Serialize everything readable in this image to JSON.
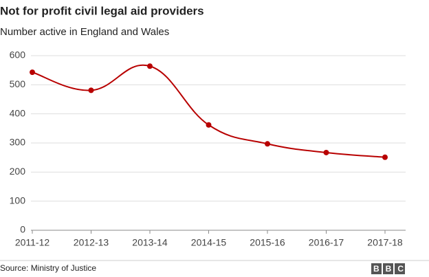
{
  "chart_data": {
    "type": "line",
    "title": "Not for profit civil legal aid providers",
    "subtitle": "Number active in England and Wales",
    "categories": [
      "2011-12",
      "2012-13",
      "2013-14",
      "2014-15",
      "2015-16",
      "2016-17",
      "2017-18"
    ],
    "series": [
      {
        "name": "Providers",
        "color": "#b80000",
        "values": [
          543,
          481,
          564,
          362,
          297,
          267,
          251
        ]
      }
    ],
    "ylim": [
      0,
      600
    ],
    "yticks": [
      0,
      100,
      200,
      300,
      400,
      500,
      600
    ],
    "grid": true,
    "source": "Source: Ministry of Justice",
    "logo": "BBC"
  }
}
